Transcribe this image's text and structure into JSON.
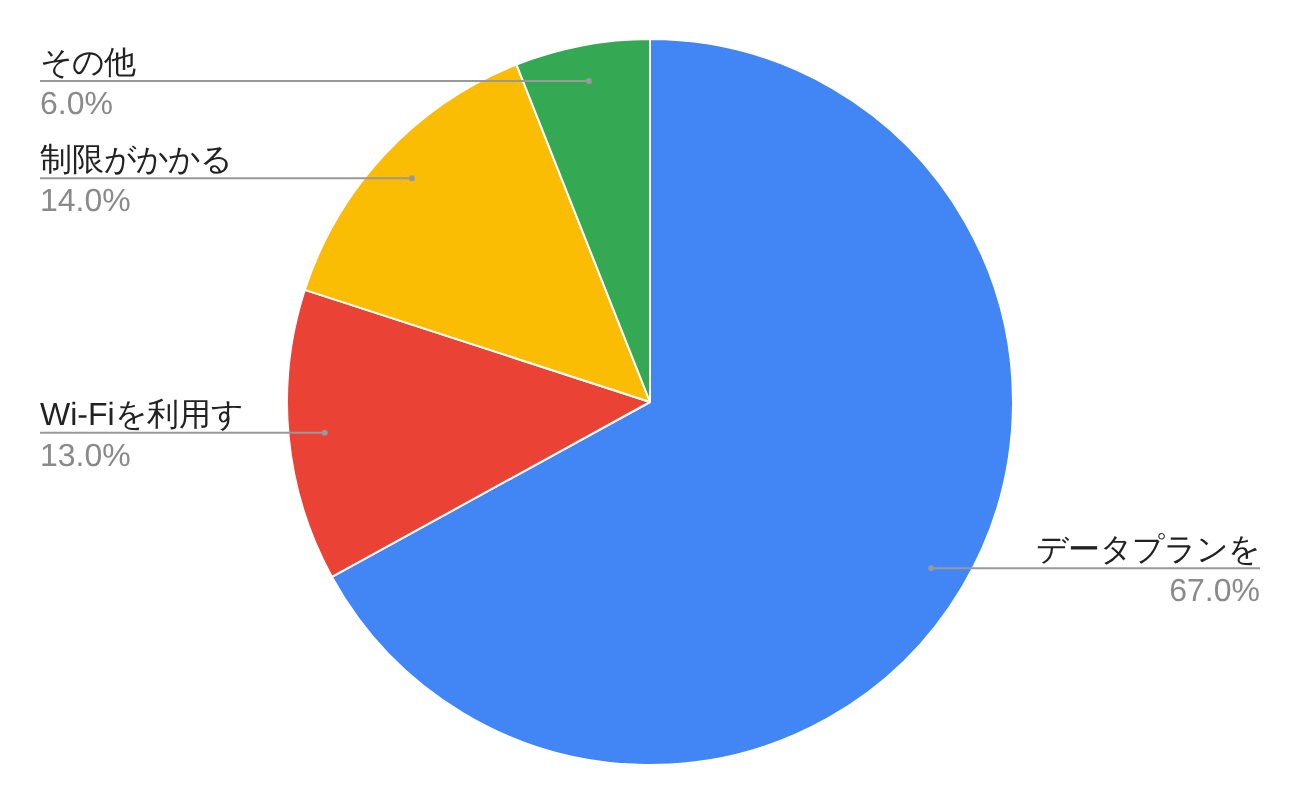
{
  "chart_data": {
    "type": "pie",
    "categories": [
      "データプランを",
      "Wi-Fiを利用す",
      "制限がかかる",
      "その他"
    ],
    "values": [
      67,
      13,
      14,
      6
    ],
    "colors": [
      "#4285f4",
      "#ea4335",
      "#fbbc04",
      "#34a853"
    ],
    "value_labels": [
      "67.0%",
      "13.0%",
      "14.0%",
      "6.0%"
    ],
    "legend": false
  }
}
